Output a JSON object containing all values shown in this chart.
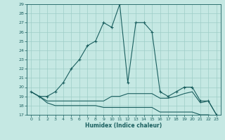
{
  "xlabel": "Humidex (Indice chaleur)",
  "bg_color": "#c5e8e3",
  "grid_color": "#9dcdc7",
  "line_color": "#1a5f5f",
  "xlim": [
    -0.5,
    23.5
  ],
  "ylim": [
    17,
    29
  ],
  "xticks": [
    0,
    1,
    2,
    3,
    4,
    5,
    6,
    7,
    8,
    9,
    10,
    11,
    12,
    13,
    14,
    15,
    16,
    17,
    18,
    19,
    20,
    21,
    22,
    23
  ],
  "yticks": [
    17,
    18,
    19,
    20,
    21,
    22,
    23,
    24,
    25,
    26,
    27,
    28,
    29
  ],
  "curve1_x": [
    0,
    1,
    2,
    3,
    4,
    5,
    6,
    7,
    8,
    9,
    10,
    11,
    12,
    13,
    14,
    15,
    16,
    17,
    18,
    19,
    20,
    21,
    22,
    23
  ],
  "curve1_y": [
    19.5,
    19.0,
    19.0,
    19.5,
    20.5,
    22.0,
    23.0,
    24.5,
    25.0,
    27.0,
    26.5,
    29.0,
    20.5,
    27.0,
    27.0,
    26.0,
    19.5,
    19.0,
    19.5,
    20.0,
    20.0,
    18.5,
    18.5,
    17.0
  ],
  "curve2_x": [
    0,
    1,
    2,
    3,
    4,
    5,
    6,
    7,
    8,
    9,
    10,
    11,
    12,
    13,
    14,
    15,
    16,
    17,
    18,
    19,
    20,
    21,
    22,
    23
  ],
  "curve2_y": [
    19.5,
    19.0,
    18.5,
    18.5,
    18.5,
    18.5,
    18.5,
    18.5,
    18.5,
    18.5,
    19.0,
    19.0,
    19.3,
    19.3,
    19.3,
    19.3,
    18.8,
    18.8,
    19.0,
    19.3,
    19.5,
    18.3,
    18.5,
    17.0
  ],
  "curve3_x": [
    0,
    1,
    2,
    3,
    4,
    5,
    6,
    7,
    8,
    9,
    10,
    11,
    12,
    13,
    14,
    15,
    16,
    17,
    18,
    19,
    20,
    21,
    22,
    23
  ],
  "curve3_y": [
    19.5,
    19.0,
    18.3,
    18.0,
    18.0,
    18.0,
    18.0,
    18.0,
    18.0,
    17.8,
    17.8,
    17.8,
    17.8,
    17.8,
    17.8,
    17.8,
    17.3,
    17.3,
    17.3,
    17.3,
    17.3,
    17.0,
    17.0,
    16.8
  ]
}
